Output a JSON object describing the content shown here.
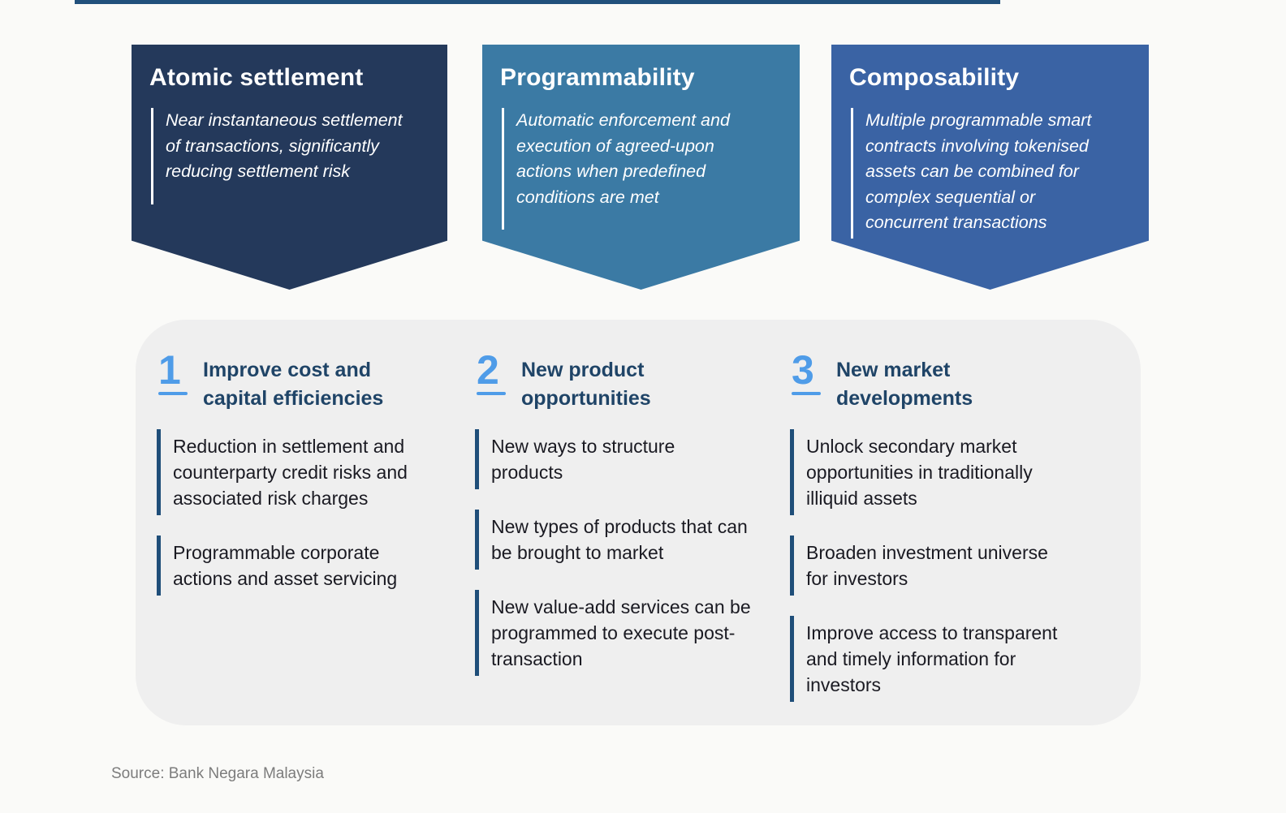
{
  "page": {
    "background_color": "#fafaf8",
    "top_rule_color": "#21507c",
    "source": "Source: Bank Negara Malaysia"
  },
  "banners": [
    {
      "title": "Atomic settlement",
      "description": "Near instantaneous settlement\nof transactions, significantly\nreducing settlement risk",
      "color": "#24395b"
    },
    {
      "title": "Programmability",
      "description": "Automatic enforcement and\nexecution of agreed-upon\nactions when predefined\nconditions are met",
      "color": "#3b7aa4"
    },
    {
      "title": "Composability",
      "description": "Multiple programmable smart\ncontracts involving tokenised\nassets can be combined for\ncomplex sequential or\nconcurrent transactions",
      "color": "#3a63a4"
    }
  ],
  "panel": {
    "background_color": "#efefef",
    "accent_color": "#4f9ce8",
    "heading_color": "#1f4467",
    "bar_color": "#1f4e79",
    "columns": [
      {
        "number": "1",
        "heading": "Improve cost and\ncapital efficiencies",
        "items": [
          "Reduction in settlement and\ncounterparty credit risks and\nassociated risk charges",
          "Programmable corporate\nactions and asset servicing"
        ]
      },
      {
        "number": "2",
        "heading": "New product\nopportunities",
        "items": [
          "New ways to structure\nproducts",
          "New types of products that can\nbe brought to market",
          "New value-add services can be\nprogrammed to execute post-\ntransaction"
        ]
      },
      {
        "number": "3",
        "heading": "New market\ndevelopments",
        "items": [
          "Unlock secondary market\nopportunities in traditionally\nilliquid assets",
          "Broaden investment universe\nfor investors",
          "Improve access to transparent\nand timely information for\ninvestors"
        ]
      }
    ]
  }
}
